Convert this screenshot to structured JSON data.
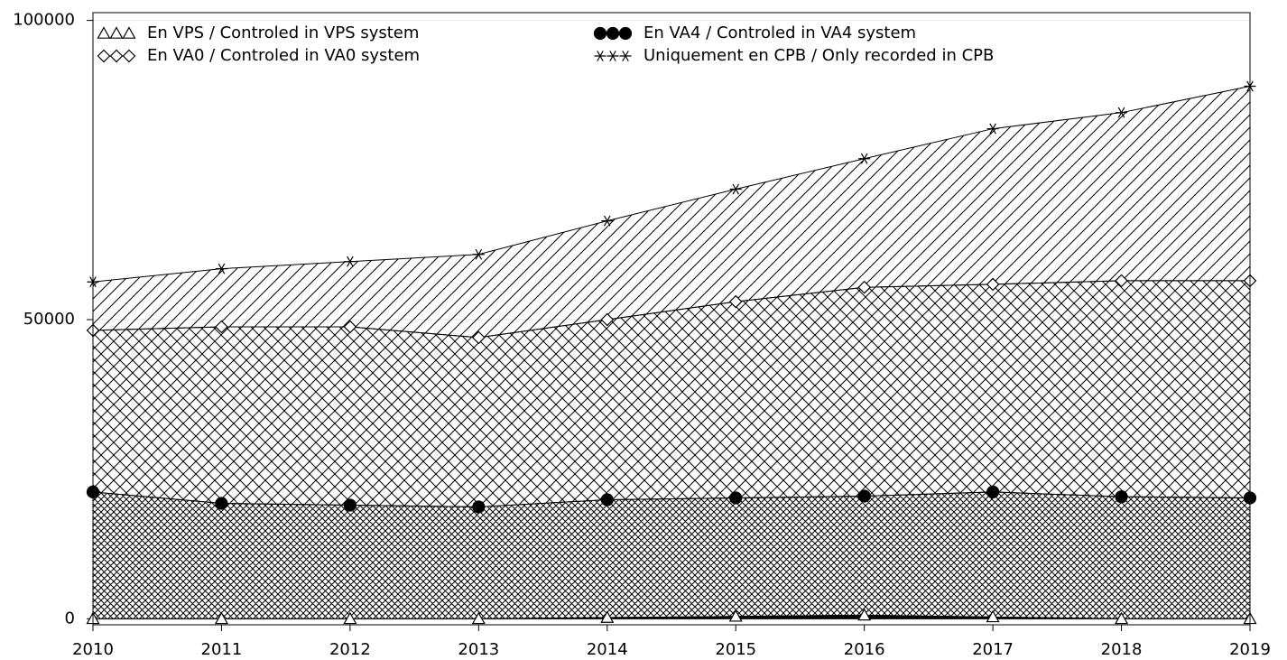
{
  "chart_data": {
    "type": "stacked_area",
    "x": [
      2010,
      2011,
      2012,
      2013,
      2014,
      2015,
      2016,
      2017,
      2018,
      2019
    ],
    "xlim": [
      2010,
      2019
    ],
    "xticks": [
      2010,
      2011,
      2012,
      2013,
      2014,
      2015,
      2016,
      2017,
      2018,
      2019
    ],
    "ylim": [
      -1000,
      101300
    ],
    "yticks": [
      0,
      50000,
      100000
    ],
    "grid": true,
    "series": [
      {
        "name": "En VPS / Controled in VPS system",
        "color": "#000000",
        "hatch": "solid",
        "marker": "triangle",
        "values": [
          0,
          0,
          0,
          0,
          200,
          400,
          600,
          300,
          0,
          0
        ]
      },
      {
        "name": "En VA4 / Controled in VA4 system",
        "color": "#000000",
        "hatch": "dense-cross",
        "marker": "circle",
        "values": [
          21200,
          19300,
          19000,
          18700,
          19700,
          19800,
          19900,
          20900,
          20400,
          20200
        ]
      },
      {
        "name": "En VA0 / Controled in VA0 system",
        "color": "#000000",
        "hatch": "cross",
        "marker": "diamond",
        "values": [
          27000,
          29500,
          29800,
          28300,
          30100,
          32800,
          34900,
          34700,
          36100,
          36300
        ]
      },
      {
        "name": "Uniquement en CPB / Only recorded in CPB",
        "color": "#000000",
        "hatch": "diagonal",
        "marker": "star",
        "values": [
          8100,
          9700,
          10900,
          13900,
          16500,
          18800,
          21500,
          26000,
          28100,
          32500
        ]
      }
    ]
  }
}
